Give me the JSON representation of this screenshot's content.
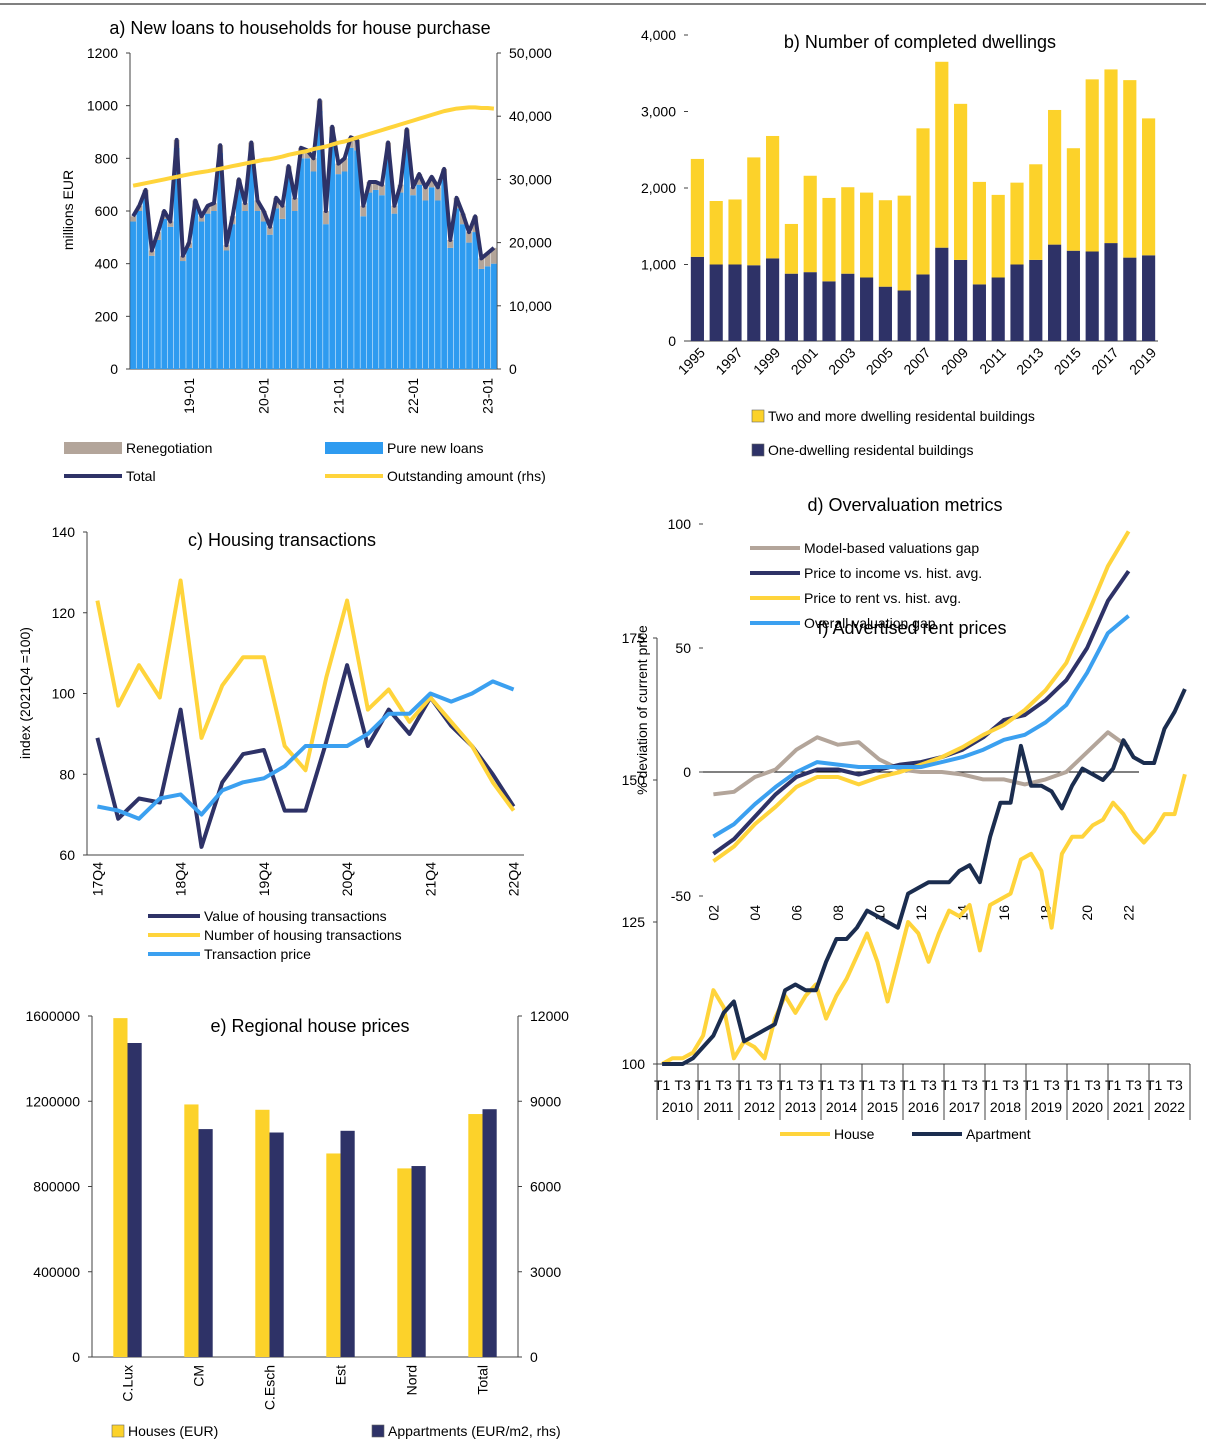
{
  "chart_data": [
    {
      "type": "bar_line",
      "title": "a) New loans to households for house purchase",
      "y_label": "millions EUR",
      "stacked": true,
      "categories": [
        null,
        null,
        null,
        null,
        null,
        null,
        null,
        null,
        null,
        "19-01",
        null,
        null,
        null,
        null,
        null,
        null,
        null,
        null,
        null,
        null,
        null,
        "20-01",
        null,
        null,
        null,
        null,
        null,
        null,
        null,
        null,
        null,
        null,
        null,
        "21-01",
        null,
        null,
        null,
        null,
        null,
        null,
        null,
        null,
        null,
        null,
        null,
        "22-01",
        null,
        null,
        null,
        null,
        null,
        null,
        null,
        null,
        null,
        null,
        null,
        "23-01",
        null
      ],
      "ylim": [
        0,
        1200
      ],
      "yticks": [
        0,
        200,
        400,
        600,
        800,
        1000,
        1200
      ],
      "y2lim": [
        0,
        50000
      ],
      "y2ticks": [
        0,
        {
          "value": 10000,
          "label": "10,000"
        },
        {
          "value": 20000,
          "label": "20,000"
        },
        {
          "value": 30000,
          "label": "30,000"
        },
        {
          "value": 40000,
          "label": "40,000"
        },
        {
          "value": 50000,
          "label": "50,000"
        }
      ],
      "series": [
        {
          "name": "Pure new loans",
          "type": "bar",
          "color": "#2e9bf0",
          "values": [
            560,
            600,
            650,
            430,
            490,
            570,
            540,
            840,
            410,
            460,
            610,
            560,
            590,
            600,
            820,
            450,
            550,
            680,
            600,
            830,
            600,
            560,
            510,
            610,
            570,
            730,
            600,
            800,
            800,
            750,
            980,
            550,
            880,
            740,
            750,
            840,
            830,
            580,
            670,
            680,
            660,
            820,
            590,
            670,
            870,
            660,
            700,
            640,
            690,
            640,
            720,
            460,
            610,
            550,
            480,
            520,
            380,
            390,
            400
          ]
        },
        {
          "name": "Renegotiation",
          "type": "bar",
          "color": "#b3a59a",
          "values": [
            20,
            20,
            30,
            20,
            30,
            30,
            20,
            30,
            20,
            20,
            30,
            20,
            30,
            30,
            30,
            20,
            30,
            40,
            30,
            30,
            40,
            40,
            30,
            40,
            50,
            40,
            50,
            40,
            30,
            50,
            40,
            50,
            40,
            40,
            50,
            40,
            40,
            40,
            40,
            30,
            40,
            40,
            30,
            30,
            40,
            30,
            40,
            50,
            40,
            50,
            40,
            30,
            40,
            40,
            40,
            60,
            40,
            50,
            60
          ]
        },
        {
          "name": "Total",
          "type": "line",
          "color": "#2e3267",
          "values": [
            580,
            620,
            680,
            450,
            520,
            600,
            560,
            870,
            430,
            480,
            640,
            580,
            620,
            630,
            850,
            470,
            580,
            720,
            630,
            860,
            640,
            600,
            540,
            650,
            620,
            770,
            650,
            840,
            830,
            800,
            1020,
            600,
            920,
            780,
            800,
            880,
            870,
            620,
            710,
            710,
            700,
            860,
            620,
            700,
            910,
            690,
            740,
            690,
            730,
            690,
            760,
            490,
            650,
            590,
            520,
            580,
            420,
            440,
            460
          ]
        },
        {
          "name": "Outstanding amount (rhs)",
          "type": "line",
          "axis": "y2",
          "color": "#ffd43b",
          "values": [
            29000,
            29200,
            29400,
            29600,
            29800,
            30000,
            30200,
            30400,
            30600,
            30800,
            31000,
            31150,
            31300,
            31500,
            31700,
            31900,
            32100,
            32300,
            32500,
            32700,
            32900,
            33100,
            33200,
            33400,
            33600,
            33900,
            34100,
            34300,
            34500,
            34800,
            35000,
            35200,
            35500,
            35800,
            36000,
            36300,
            36600,
            36900,
            37200,
            37500,
            37800,
            38100,
            38400,
            38700,
            39000,
            39300,
            39600,
            39900,
            40200,
            40500,
            40800,
            41000,
            41200,
            41300,
            41400,
            41400,
            41300,
            41300,
            41200
          ]
        }
      ]
    },
    {
      "type": "bar",
      "title": "b) Number of completed dwellings",
      "stacked": true,
      "categories": [
        "1995",
        null,
        "1997",
        null,
        "1999",
        null,
        "2001",
        null,
        "2003",
        null,
        "2005",
        null,
        "2007",
        null,
        "2009",
        null,
        "2011",
        null,
        "2013",
        null,
        "2015",
        null,
        "2017",
        null,
        "2019"
      ],
      "ylim": [
        0,
        4000
      ],
      "yticks": [
        0,
        {
          "value": 1000,
          "label": "1,000"
        },
        {
          "value": 2000,
          "label": "2,000"
        },
        {
          "value": 3000,
          "label": "3,000"
        },
        {
          "value": 4000,
          "label": "4,000"
        }
      ],
      "series": [
        {
          "name": "One-dwelling residental buildings",
          "color": "#2e3267",
          "values": [
            1100,
            1000,
            1000,
            990,
            1080,
            880,
            900,
            780,
            880,
            830,
            710,
            660,
            870,
            1220,
            1060,
            740,
            830,
            1000,
            1060,
            1260,
            1180,
            1170,
            1280,
            1090,
            1120
          ]
        },
        {
          "name": "Two and more dwelling residental buildings",
          "color": "#fcd22a",
          "values": [
            1280,
            830,
            850,
            1410,
            1600,
            650,
            1260,
            1090,
            1130,
            1110,
            1130,
            1240,
            1910,
            2430,
            2040,
            1340,
            1080,
            1070,
            1250,
            1760,
            1340,
            2250,
            2270,
            2320,
            1790
          ]
        }
      ]
    },
    {
      "type": "line",
      "title": "c) Housing transactions",
      "y_label": "index (2021Q4 =100)",
      "categories": [
        "17Q4",
        null,
        null,
        null,
        "18Q4",
        null,
        null,
        null,
        "19Q4",
        null,
        null,
        null,
        "20Q4",
        null,
        null,
        null,
        "21Q4",
        null,
        null,
        null,
        "22Q4"
      ],
      "ylim": [
        60,
        140
      ],
      "yticks": [
        60,
        80,
        100,
        120,
        140
      ],
      "series": [
        {
          "name": "Value of housing transactions",
          "color": "#2e3267",
          "values": [
            89,
            69,
            74,
            73,
            96,
            62,
            78,
            85,
            86,
            71,
            71,
            88,
            107,
            87,
            96,
            90,
            99,
            92,
            87,
            80,
            72
          ]
        },
        {
          "name": "Number of housing transactions",
          "color": "#ffd43b",
          "values": [
            123,
            97,
            107,
            99,
            128,
            89,
            102,
            109,
            109,
            87,
            81,
            104,
            123,
            96,
            101,
            93,
            99,
            93,
            87,
            78,
            71
          ]
        },
        {
          "name": "Transaction price",
          "color": "#3ba0f0",
          "values": [
            72,
            71,
            69,
            74,
            75,
            70,
            76,
            78,
            79,
            82,
            87,
            87,
            87,
            90,
            95,
            95,
            100,
            98,
            100,
            103,
            101
          ]
        }
      ]
    },
    {
      "type": "line",
      "title": "d) Overvaluation metrics",
      "y_label": "% deviation of current price",
      "categories": [
        "02",
        null,
        "04",
        null,
        "06",
        null,
        "08",
        null,
        "10",
        null,
        "12",
        null,
        "14",
        null,
        "16",
        null,
        "18",
        null,
        "20",
        null,
        "22"
      ],
      "ylim": [
        -50,
        100
      ],
      "yticks": [
        -50,
        0,
        50,
        100
      ],
      "series": [
        {
          "name": "Model-based valuations gap",
          "color": "#b3a59a",
          "values": [
            -9,
            -8,
            -2,
            1,
            9,
            14,
            11,
            12,
            5,
            1,
            0,
            0,
            -1,
            -3,
            -3,
            -5,
            -3,
            0,
            8,
            16,
            10
          ]
        },
        {
          "name": "Price to income vs. hist. avg.",
          "color": "#2e3267",
          "values": [
            -33,
            -27,
            -18,
            -9,
            -2,
            1,
            1,
            -1,
            1,
            3,
            4,
            6,
            9,
            14,
            21,
            23,
            29,
            37,
            50,
            69,
            81
          ]
        },
        {
          "name": "Price to rent vs. hist. avg.",
          "color": "#ffd43b",
          "values": [
            -36,
            -30,
            -21,
            -14,
            -6,
            -2,
            -2,
            -5,
            -2,
            0,
            3,
            6,
            10,
            15,
            19,
            25,
            33,
            44,
            63,
            83,
            97
          ]
        },
        {
          "name": "Overall valuation gap",
          "color": "#3ba0f0",
          "values": [
            -26,
            -21,
            -13,
            -6,
            0,
            4,
            3,
            2,
            2,
            2,
            2,
            4,
            6,
            9,
            13,
            15,
            20,
            27,
            40,
            56,
            63
          ]
        }
      ]
    },
    {
      "type": "bar",
      "title": "e) Regional house prices",
      "categories": [
        "C.Lux",
        "CM",
        "C.Esch",
        "Est",
        "Nord",
        "Total"
      ],
      "ylim": [
        0,
        1600000
      ],
      "yticks": [
        0,
        400000,
        800000,
        1200000,
        1600000
      ],
      "y2lim": [
        0,
        12000
      ],
      "y2ticks": [
        0,
        3000,
        6000,
        9000,
        12000
      ],
      "series": [
        {
          "name": "Houses (EUR)",
          "color": "#fcd22a",
          "values": [
            1590000,
            1185000,
            1160000,
            955000,
            885000,
            1140000
          ]
        },
        {
          "name": "Appartments (EUR/m2, rhs)",
          "axis": "y2",
          "color": "#2e3267",
          "values": [
            11050,
            8020,
            7900,
            7960,
            6720,
            8720
          ]
        }
      ]
    },
    {
      "type": "line",
      "title": "f) Advertised rent prices",
      "categories": [
        "T1",
        null,
        "T3",
        null,
        "T1",
        null,
        "T3",
        null,
        "T1",
        null,
        "T3",
        null,
        "T1",
        null,
        "T3",
        null,
        "T1",
        null,
        "T3",
        null,
        "T1",
        null,
        "T3",
        null,
        "T1",
        null,
        "T3",
        null,
        "T1",
        null,
        "T3",
        null,
        "T1",
        null,
        "T3",
        null,
        "T1",
        null,
        "T3",
        null,
        "T1",
        null,
        "T3",
        null,
        "T1",
        null,
        "T3",
        null,
        "T1",
        null,
        "T3",
        null
      ],
      "years": [
        "2010",
        "2011",
        "2012",
        "2013",
        "2014",
        "2015",
        "2016",
        "2017",
        "2018",
        "2019",
        "2020",
        "2021",
        "2022"
      ],
      "ylim": [
        100,
        175
      ],
      "yticks": [
        100,
        125,
        150,
        175
      ],
      "series": [
        {
          "name": "House",
          "color": "#ffd43b",
          "values": [
            100,
            101,
            101,
            102,
            105,
            113,
            110,
            101,
            104,
            103,
            101,
            108,
            112,
            109,
            112,
            114,
            108,
            112,
            115,
            119,
            123,
            118,
            111,
            118,
            125,
            123,
            118,
            123,
            127,
            126,
            128,
            120,
            128,
            129,
            130,
            136,
            137,
            134,
            124,
            137,
            140,
            140,
            142,
            143,
            146,
            144,
            141,
            139,
            141,
            144,
            144,
            151
          ]
        },
        {
          "name": "Apartment",
          "color": "#1b2d4f",
          "values": [
            100,
            100,
            100,
            101,
            103,
            105,
            109,
            111,
            104,
            105,
            106,
            107,
            113,
            114,
            113,
            113,
            118,
            122,
            122,
            124,
            127,
            126,
            125,
            124,
            130,
            131,
            132,
            132,
            132,
            134,
            135,
            132,
            140,
            146,
            146,
            156,
            149,
            149,
            148,
            145,
            149,
            152,
            151,
            150,
            152,
            157,
            154,
            153,
            153,
            159,
            162,
            166
          ]
        }
      ]
    }
  ]
}
